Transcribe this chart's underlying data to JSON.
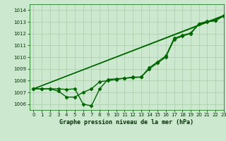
{
  "background_color": "#cce8cf",
  "plot_bg_color": "#cce8cf",
  "grid_color": "#aaccaa",
  "line_color": "#006600",
  "title": "Graphe pression niveau de la mer (hPa)",
  "xlim": [
    -0.5,
    23
  ],
  "ylim": [
    1005.5,
    1014.5
  ],
  "yticks": [
    1006,
    1007,
    1008,
    1009,
    1010,
    1011,
    1012,
    1013,
    1014
  ],
  "xticks": [
    0,
    1,
    2,
    3,
    4,
    5,
    6,
    7,
    8,
    9,
    10,
    11,
    12,
    13,
    14,
    15,
    16,
    17,
    18,
    19,
    20,
    21,
    22,
    23
  ],
  "series": [
    {
      "x": [
        0,
        1,
        2,
        3,
        4,
        5,
        6,
        7,
        8,
        9,
        10,
        11,
        12,
        13,
        14,
        15,
        16,
        17,
        18,
        19,
        20,
        21,
        22,
        23
      ],
      "y": [
        1007.3,
        1007.3,
        1007.3,
        1007.1,
        1006.6,
        1006.6,
        1007.0,
        1007.3,
        1007.9,
        1008.0,
        1008.1,
        1008.2,
        1008.25,
        1008.3,
        1009.0,
        1009.5,
        1010.0,
        1011.5,
        1011.8,
        1012.0,
        1012.8,
        1013.0,
        1013.1,
        1013.5
      ],
      "marker": "D",
      "markersize": 2.5,
      "linewidth": 1.0
    },
    {
      "x": [
        0,
        1,
        2,
        3,
        4,
        5,
        6,
        7,
        8,
        9,
        10,
        11,
        12,
        13,
        14,
        15,
        16,
        17,
        18,
        19,
        20,
        21,
        22,
        23
      ],
      "y": [
        1007.3,
        1007.3,
        1007.3,
        1007.3,
        1007.25,
        1007.3,
        1006.0,
        1005.85,
        1007.3,
        1008.1,
        1008.15,
        1008.2,
        1008.3,
        1008.3,
        1009.1,
        1009.6,
        1010.1,
        1011.6,
        1011.85,
        1012.05,
        1012.85,
        1013.05,
        1013.1,
        1013.55
      ],
      "marker": "D",
      "markersize": 2.5,
      "linewidth": 1.0
    },
    {
      "x": [
        0,
        23
      ],
      "y": [
        1007.3,
        1013.5
      ],
      "marker": null,
      "linewidth": 1.0
    },
    {
      "x": [
        0,
        23
      ],
      "y": [
        1007.3,
        1013.55
      ],
      "marker": null,
      "linewidth": 1.0
    }
  ]
}
